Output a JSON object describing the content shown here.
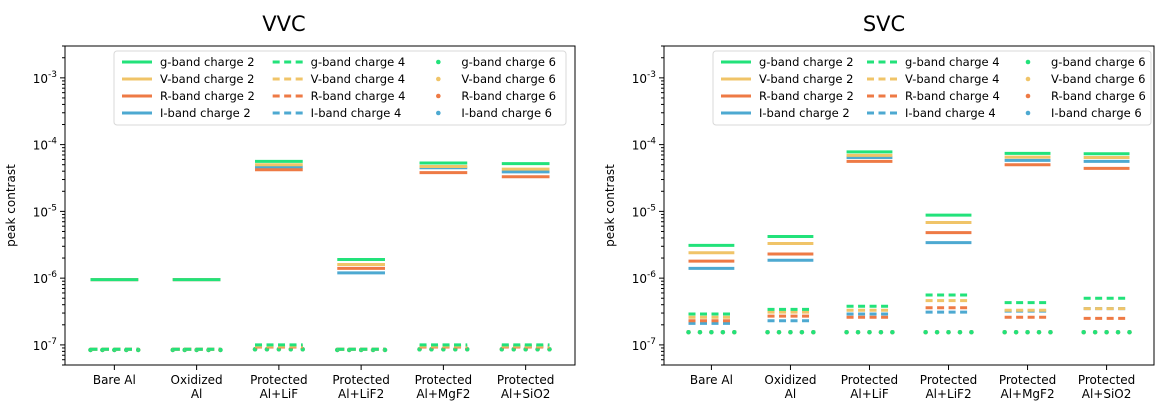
{
  "colors": {
    "g": "#22e27a",
    "V": "#f0c468",
    "R": "#ee7a45",
    "I": "#4da9d1"
  },
  "legend_labels": [
    "g-band charge 2",
    "g-band charge 4",
    "g-band charge 6",
    "V-band charge 2",
    "V-band charge 4",
    "V-band charge 6",
    "R-band charge 2",
    "R-band charge 4",
    "R-band charge 6",
    "I-band charge 2",
    "I-band charge 4",
    "I-band charge 6"
  ],
  "chart_data": [
    {
      "type": "line",
      "title": "VVC",
      "xlabel": "",
      "ylabel": "peak contrast",
      "yscale": "log",
      "ylim": [
        5e-08,
        0.003
      ],
      "yticks": [
        "10^-7",
        "10^-6",
        "10^-5",
        "10^-4",
        "10^-3"
      ],
      "categories": [
        "Bare Al",
        "Oxidized\nAl",
        "Protected\nAl+LiF",
        "Protected\nAl+LiF2",
        "Protected\nAl+MgF2",
        "Protected\nAl+SiO2"
      ],
      "legend_position": "top-right",
      "series": [
        {
          "name": "g-band charge 2",
          "values": [
            9.5e-07,
            9.5e-07,
            5.6e-05,
            1.9e-06,
            5.3e-05,
            5.2e-05
          ]
        },
        {
          "name": "V-band charge 2",
          "values": [
            9.5e-07,
            9.5e-07,
            5e-05,
            1.6e-06,
            4.7e-05,
            4.3e-05
          ]
        },
        {
          "name": "R-band charge 2",
          "values": [
            9.5e-07,
            9.5e-07,
            4.2e-05,
            1.4e-06,
            3.8e-05,
            3.3e-05
          ]
        },
        {
          "name": "I-band charge 2",
          "values": [
            9.5e-07,
            9.5e-07,
            4.6e-05,
            1.2e-06,
            4.5e-05,
            3.9e-05
          ]
        },
        {
          "name": "g-band charge 4",
          "values": [
            8.6e-08,
            8.6e-08,
            1e-07,
            8.6e-08,
            1e-07,
            1e-07
          ]
        },
        {
          "name": "V-band charge 4",
          "values": [
            8.6e-08,
            8.6e-08,
            9.6e-08,
            8.6e-08,
            9.6e-08,
            9.6e-08
          ]
        },
        {
          "name": "R-band charge 4",
          "values": [
            8.6e-08,
            8.6e-08,
            9.3e-08,
            8.6e-08,
            9.3e-08,
            9.3e-08
          ]
        },
        {
          "name": "I-band charge 4",
          "values": [
            8.6e-08,
            8.6e-08,
            9.5e-08,
            8.6e-08,
            9.5e-08,
            9.5e-08
          ]
        },
        {
          "name": "g-band charge 6",
          "values": [
            8.4e-08,
            8.4e-08,
            8.6e-08,
            8.4e-08,
            8.6e-08,
            8.6e-08
          ]
        },
        {
          "name": "V-band charge 6",
          "values": [
            8.4e-08,
            8.4e-08,
            8.6e-08,
            8.4e-08,
            8.6e-08,
            8.6e-08
          ]
        },
        {
          "name": "R-band charge 6",
          "values": [
            8.4e-08,
            8.4e-08,
            8.6e-08,
            8.4e-08,
            8.6e-08,
            8.6e-08
          ]
        },
        {
          "name": "I-band charge 6",
          "values": [
            8.4e-08,
            8.4e-08,
            8.6e-08,
            8.4e-08,
            8.6e-08,
            8.6e-08
          ]
        }
      ]
    },
    {
      "type": "line",
      "title": "SVC",
      "xlabel": "",
      "ylabel": "peak contrast",
      "yscale": "log",
      "ylim": [
        5e-08,
        0.003
      ],
      "yticks": [
        "10^-7",
        "10^-6",
        "10^-5",
        "10^-4",
        "10^-3"
      ],
      "categories": [
        "Bare Al",
        "Oxidized\nAl",
        "Protected\nAl+LiF",
        "Protected\nAl+LiF2",
        "Protected\nAl+MgF2",
        "Protected\nAl+SiO2"
      ],
      "legend_position": "top-right",
      "series": [
        {
          "name": "g-band charge 2",
          "values": [
            3.1e-06,
            4.2e-06,
            7.8e-05,
            8.8e-06,
            7.4e-05,
            7.3e-05
          ]
        },
        {
          "name": "V-band charge 2",
          "values": [
            2.4e-06,
            3.3e-06,
            6.9e-05,
            6.8e-06,
            6.5e-05,
            6.4e-05
          ]
        },
        {
          "name": "R-band charge 2",
          "values": [
            1.8e-06,
            2.3e-06,
            5.6e-05,
            4.8e-06,
            5e-05,
            4.4e-05
          ]
        },
        {
          "name": "I-band charge 2",
          "values": [
            1.4e-06,
            1.85e-06,
            6.4e-05,
            3.4e-06,
            5.8e-05,
            5.6e-05
          ]
        },
        {
          "name": "g-band charge 4",
          "values": [
            2.9e-07,
            3.4e-07,
            3.8e-07,
            5.6e-07,
            4.3e-07,
            5e-07
          ]
        },
        {
          "name": "V-band charge 4",
          "values": [
            2.6e-07,
            3.1e-07,
            3.3e-07,
            4.6e-07,
            3.3e-07,
            3.5e-07
          ]
        },
        {
          "name": "R-band charge 4",
          "values": [
            2.3e-07,
            2.7e-07,
            2.6e-07,
            3.6e-07,
            2.6e-07,
            2.5e-07
          ]
        },
        {
          "name": "I-band charge 4",
          "values": [
            2.1e-07,
            2.3e-07,
            2.9e-07,
            3.1e-07,
            3.2e-07,
            3.5e-07
          ]
        },
        {
          "name": "g-band charge 6",
          "values": [
            1.55e-07,
            1.55e-07,
            1.55e-07,
            1.55e-07,
            1.55e-07,
            1.55e-07
          ]
        },
        {
          "name": "V-band charge 6",
          "values": [
            1.55e-07,
            1.55e-07,
            1.55e-07,
            1.55e-07,
            1.55e-07,
            1.55e-07
          ]
        },
        {
          "name": "R-band charge 6",
          "values": [
            1.55e-07,
            1.55e-07,
            1.55e-07,
            1.55e-07,
            1.55e-07,
            1.55e-07
          ]
        },
        {
          "name": "I-band charge 6",
          "values": [
            1.55e-07,
            1.55e-07,
            1.55e-07,
            1.55e-07,
            1.55e-07,
            1.55e-07
          ]
        }
      ]
    }
  ]
}
